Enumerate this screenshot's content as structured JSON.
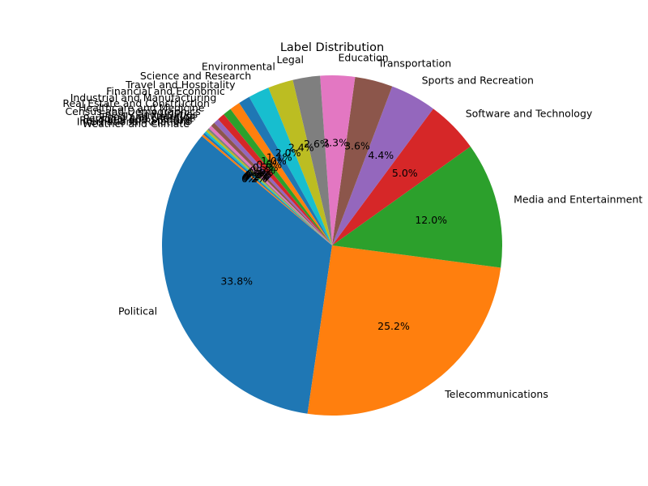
{
  "chart_data": {
    "type": "pie",
    "title": "Label Distribution",
    "start_angle_deg": 140,
    "counterclockwise": true,
    "slices": [
      {
        "label": "Political",
        "value": 33.9,
        "color": "#1f77b4"
      },
      {
        "label": "Telecommunications",
        "value": 25.3,
        "color": "#ff7f0e"
      },
      {
        "label": "Media and Entertainment",
        "value": 12.0,
        "color": "#2ca02c"
      },
      {
        "label": "Software and Technology",
        "value": 5.0,
        "color": "#d62728"
      },
      {
        "label": "Sports and Recreation",
        "value": 4.4,
        "color": "#9467bd"
      },
      {
        "label": "Transportation",
        "value": 3.6,
        "color": "#8c564b"
      },
      {
        "label": "Education",
        "value": 3.3,
        "color": "#e377c2"
      },
      {
        "label": "Legal",
        "value": 2.6,
        "color": "#7f7f7f"
      },
      {
        "label": "Environmental",
        "value": 2.4,
        "color": "#bcbd22"
      },
      {
        "label": "Science and Research",
        "value": 2.0,
        "color": "#17becf"
      },
      {
        "label": "Travel and Hospitality",
        "value": 1.1,
        "color": "#1f77b4"
      },
      {
        "label": "Financial and Economic",
        "value": 1.0,
        "color": "#ff7f0e"
      },
      {
        "label": "Industrial and Manufacturing",
        "value": 0.8,
        "color": "#2ca02c"
      },
      {
        "label": "Real Estate and Construction",
        "value": 0.7,
        "color": "#d62728"
      },
      {
        "label": "Healthcare and Medicine",
        "value": 0.5,
        "color": "#9467bd"
      },
      {
        "label": "Census and Demographics",
        "value": 0.4,
        "color": "#8c564b"
      },
      {
        "label": "Energy and Utilities",
        "value": 0.3,
        "color": "#e377c2"
      },
      {
        "label": "Food and Nutrition",
        "value": 0.2,
        "color": "#7f7f7f"
      },
      {
        "label": "Personal and Lifestyle",
        "value": 0.2,
        "color": "#bcbd22"
      },
      {
        "label": "Religious and Spiritual",
        "value": 0.2,
        "color": "#17becf"
      },
      {
        "label": "International Relations",
        "value": 0.2,
        "color": "#1f77b4"
      },
      {
        "label": "Weather and Climate",
        "value": 0.2,
        "color": "#ff7f0e"
      }
    ]
  }
}
